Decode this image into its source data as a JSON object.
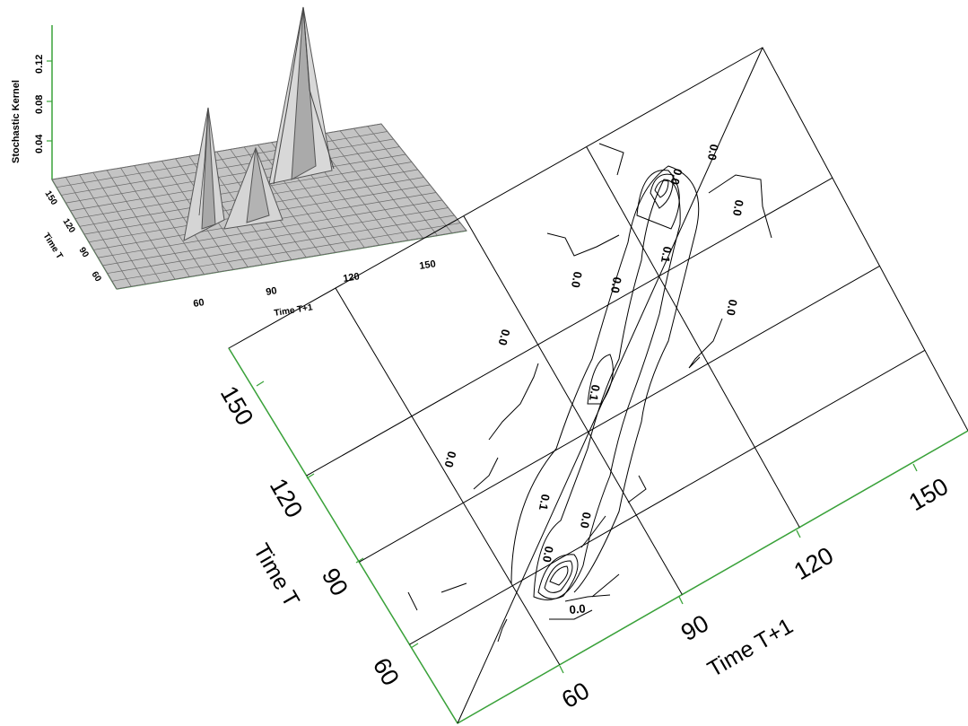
{
  "chart_data": [
    {
      "type": "surface",
      "zlabel": "Stochastic Kernel",
      "xlabel": "Time T+1",
      "ylabel": "Time T",
      "z_ticks": [
        "0.04",
        "0.08",
        "0.12"
      ],
      "x_ticks": [
        "60",
        "90",
        "120",
        "150"
      ],
      "y_ticks": [
        "60",
        "90",
        "120",
        "150"
      ],
      "peaks": [
        {
          "time_t": 60,
          "time_t1": 60,
          "density": 0.09
        },
        {
          "time_t": 90,
          "time_t1": 90,
          "density": 0.05
        },
        {
          "time_t": 135,
          "time_t1": 135,
          "density": 0.15
        }
      ]
    },
    {
      "type": "contour",
      "xlabel": "Time T+1",
      "ylabel": "Time T",
      "x_ticks": [
        "60",
        "90",
        "120",
        "150"
      ],
      "y_ticks": [
        "60",
        "90",
        "120",
        "150"
      ],
      "contour_labels": [
        "0.0",
        "0.1"
      ],
      "diagonal": "45-degree line"
    }
  ]
}
